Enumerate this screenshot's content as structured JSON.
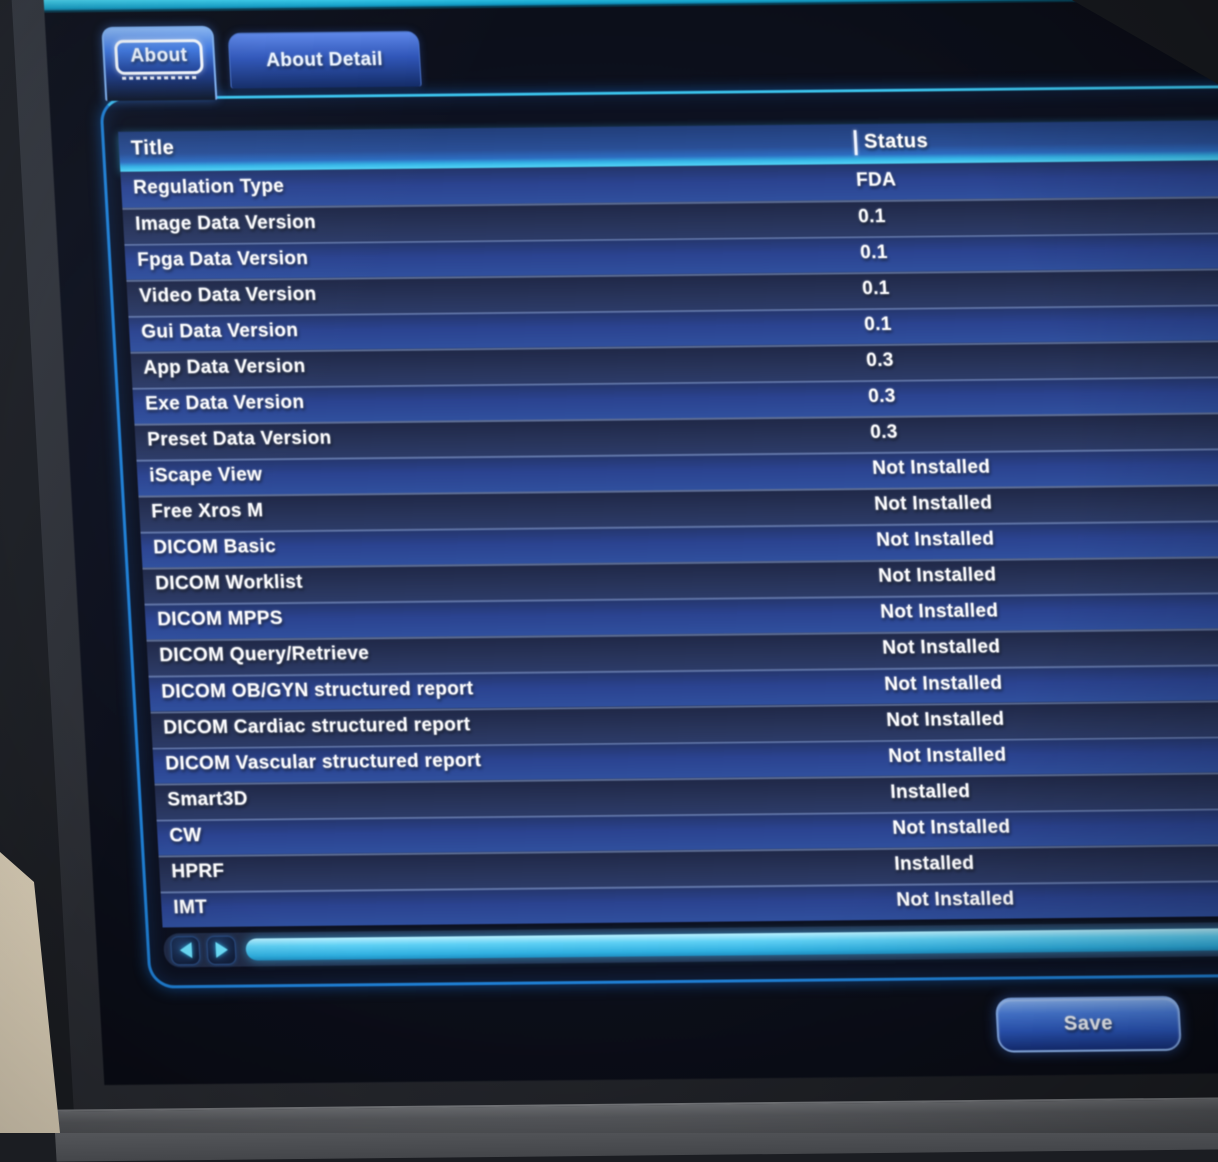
{
  "tabs": [
    {
      "label": "About",
      "state": "active"
    },
    {
      "label": "About Detail",
      "state": "inactive"
    }
  ],
  "table": {
    "columns": {
      "title": "Title",
      "status": "Status"
    },
    "rows": [
      {
        "title": "Regulation Type",
        "status": "FDA"
      },
      {
        "title": "Image Data Version",
        "status": "0.1"
      },
      {
        "title": "Fpga Data Version",
        "status": "0.1"
      },
      {
        "title": "Video Data Version",
        "status": "0.1"
      },
      {
        "title": "Gui Data Version",
        "status": "0.1"
      },
      {
        "title": "App Data Version",
        "status": "0.3"
      },
      {
        "title": "Exe Data Version",
        "status": "0.3"
      },
      {
        "title": "Preset Data Version",
        "status": "0.3"
      },
      {
        "title": "iScape View",
        "status": "Not Installed"
      },
      {
        "title": "Free Xros M",
        "status": "Not Installed"
      },
      {
        "title": "DICOM Basic",
        "status": "Not Installed"
      },
      {
        "title": "DICOM Worklist",
        "status": "Not Installed"
      },
      {
        "title": "DICOM MPPS",
        "status": "Not Installed"
      },
      {
        "title": "DICOM Query/Retrieve",
        "status": "Not Installed"
      },
      {
        "title": "DICOM OB/GYN structured report",
        "status": "Not Installed"
      },
      {
        "title": "DICOM Cardiac structured report",
        "status": "Not Installed"
      },
      {
        "title": "DICOM Vascular structured report",
        "status": "Not Installed"
      },
      {
        "title": "Smart3D",
        "status": "Installed"
      },
      {
        "title": "CW",
        "status": "Not Installed"
      },
      {
        "title": "HPRF",
        "status": "Installed"
      },
      {
        "title": "IMT",
        "status": "Not Installed"
      }
    ]
  },
  "footer": {
    "save_label": "Save"
  },
  "icons": {
    "scroll_left": "left-triangle",
    "scroll_right": "right-triangle"
  },
  "theme": {
    "accent_cyan": "#3cd0ee",
    "panel_border": "#1f7fd4",
    "header_blue": "#2a4f96",
    "row_bright": "#2b4390",
    "row_dark": "#28345a",
    "button_blue": "#3a6fd0",
    "text": "#ffffff",
    "bezel": "#26282e",
    "wall": "#d9cdb5"
  }
}
